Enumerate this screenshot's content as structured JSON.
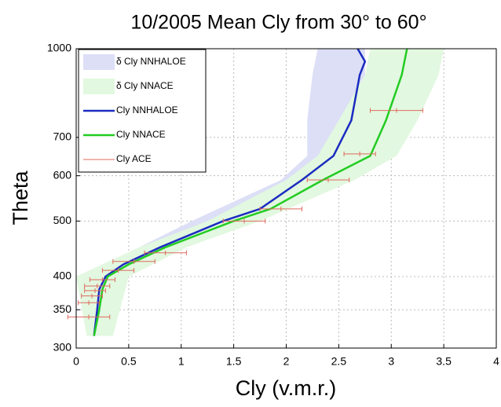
{
  "chart_data": {
    "type": "line",
    "title": "10/2005 Mean Cly from 30° to 60°",
    "xlabel": "Cly (v.m.r.)",
    "ylabel": "Theta",
    "xlim": [
      0,
      4
    ],
    "xticks": [
      0,
      0.5,
      1,
      1.5,
      2,
      2.5,
      3,
      3.5,
      4
    ],
    "ylim": [
      300,
      1000
    ],
    "yticks": [
      300,
      350,
      400,
      500,
      600,
      700,
      1000
    ],
    "yscale": "log",
    "grid": true,
    "legend": "upper left",
    "bands": [
      {
        "name": "δ Cly NNHALOE",
        "color": "#dcdff6",
        "y": [
          315,
          400,
          450,
          500,
          590,
          650,
          750,
          900,
          1000
        ],
        "x_low": [
          0.15,
          0.2,
          0.6,
          1.1,
          1.95,
          2.2,
          2.2,
          2.25,
          2.3
        ],
        "x_high": [
          0.2,
          0.35,
          0.95,
          1.6,
          2.3,
          2.55,
          2.65,
          2.75,
          2.75
        ]
      },
      {
        "name": "δ Cly NNACE",
        "color": "#e2f8e0",
        "y": [
          315,
          400,
          450,
          500,
          590,
          650,
          750,
          900,
          1000
        ],
        "x_low": [
          0.1,
          0.0,
          0.6,
          1.25,
          2.0,
          2.3,
          2.5,
          2.75,
          2.8
        ],
        "x_high": [
          0.35,
          0.5,
          1.05,
          1.75,
          2.65,
          3.05,
          3.25,
          3.45,
          3.5
        ]
      }
    ],
    "series": [
      {
        "name": "Cly NNHALOE",
        "color": "#1b2cc0",
        "y": [
          315,
          350,
          380,
          400,
          420,
          450,
          500,
          525,
          590,
          650,
          750,
          900,
          950,
          1000
        ],
        "x": [
          0.17,
          0.2,
          0.22,
          0.28,
          0.45,
          0.8,
          1.4,
          1.75,
          2.15,
          2.45,
          2.62,
          2.7,
          2.75,
          2.68
        ]
      },
      {
        "name": "Cly NNACE",
        "color": "#22cc22",
        "y": [
          315,
          350,
          380,
          400,
          420,
          450,
          500,
          525,
          590,
          650,
          750,
          900,
          1000
        ],
        "x": [
          0.17,
          0.22,
          0.25,
          0.3,
          0.5,
          0.85,
          1.5,
          1.85,
          2.35,
          2.8,
          2.95,
          3.1,
          3.15
        ]
      }
    ],
    "errorbars": {
      "name": "Cly ACE",
      "color": "#e06a5e",
      "y": [
        340,
        360,
        370,
        378,
        385,
        395,
        410,
        425,
        440,
        500,
        525,
        590,
        655,
        780
      ],
      "x": [
        0.12,
        0.12,
        0.15,
        0.18,
        0.2,
        0.25,
        0.4,
        0.55,
        0.85,
        1.6,
        1.95,
        2.4,
        2.7,
        3.05
      ],
      "xerr": [
        0.2,
        0.1,
        0.1,
        0.1,
        0.12,
        0.12,
        0.15,
        0.2,
        0.2,
        0.2,
        0.2,
        0.2,
        0.15,
        0.25
      ]
    }
  }
}
